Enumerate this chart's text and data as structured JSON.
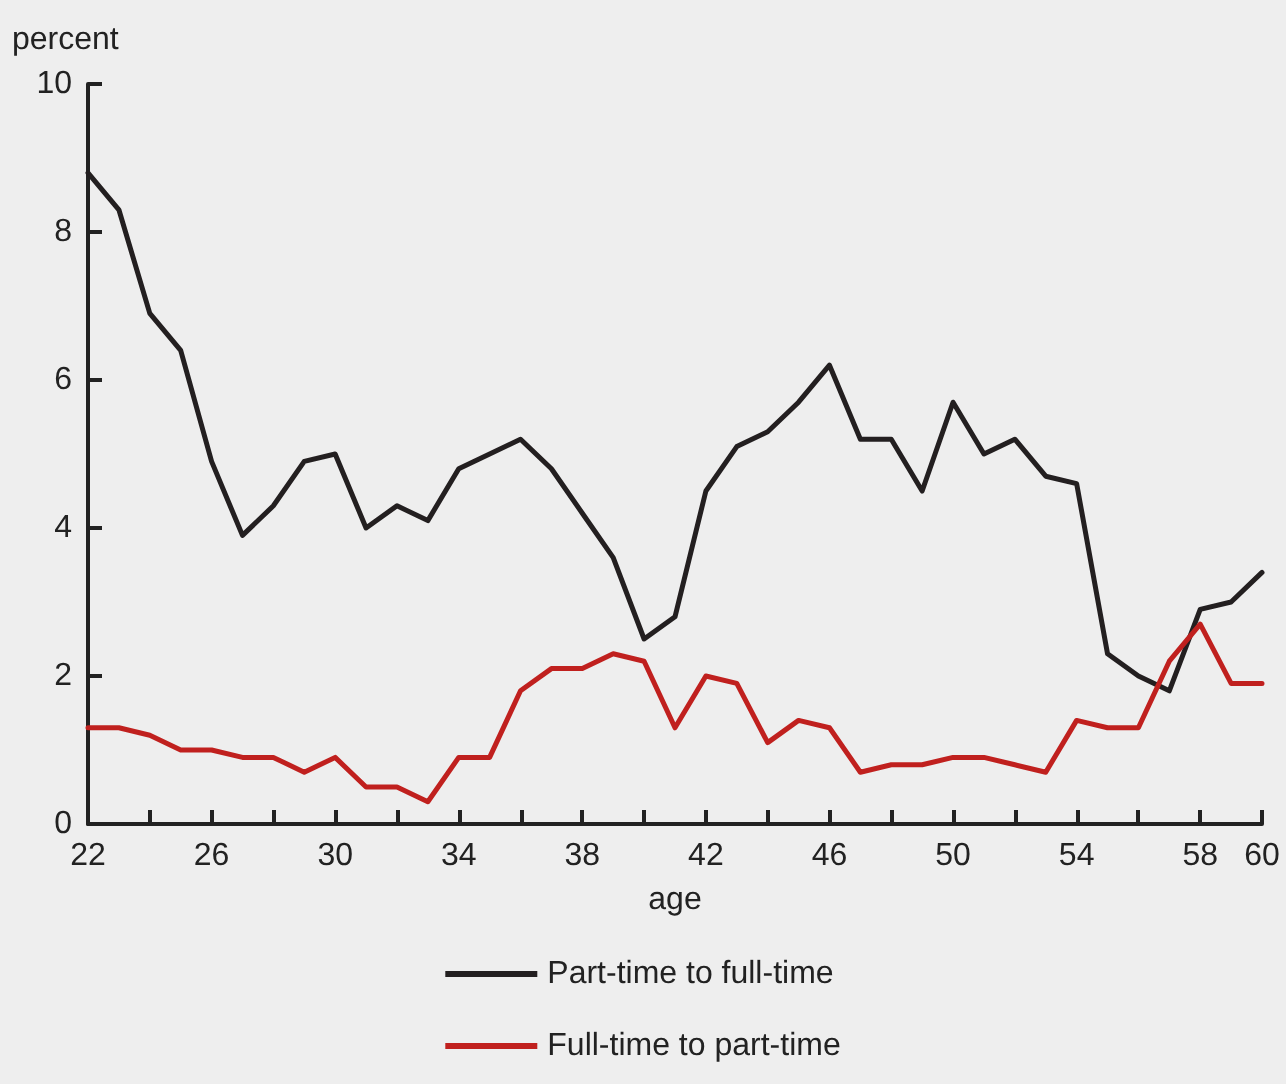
{
  "chart_data": {
    "type": "line",
    "xlabel": "age",
    "ylabel": "percent",
    "x": [
      22,
      23,
      24,
      25,
      26,
      27,
      28,
      29,
      30,
      31,
      32,
      33,
      34,
      35,
      36,
      37,
      38,
      39,
      40,
      41,
      42,
      43,
      44,
      45,
      46,
      47,
      48,
      49,
      50,
      51,
      52,
      53,
      54,
      55,
      56,
      57,
      58,
      59,
      60
    ],
    "series": [
      {
        "name": "Part-time to full-time",
        "color": "#231f20",
        "values": [
          8.8,
          8.3,
          6.9,
          6.4,
          4.9,
          3.9,
          4.3,
          4.9,
          5.0,
          4.0,
          4.3,
          4.1,
          4.8,
          5.0,
          5.2,
          4.8,
          4.2,
          3.6,
          2.5,
          2.8,
          4.5,
          5.1,
          5.3,
          5.7,
          6.2,
          5.2,
          5.2,
          4.5,
          5.7,
          5.0,
          5.2,
          4.7,
          4.6,
          2.3,
          2.0,
          1.8,
          2.9,
          3.0,
          3.4
        ]
      },
      {
        "name": "Full-time to part-time",
        "color": "#c0201e",
        "values": [
          1.3,
          1.3,
          1.2,
          1.0,
          1.0,
          0.9,
          0.9,
          0.7,
          0.9,
          0.5,
          0.5,
          0.3,
          0.9,
          0.9,
          1.8,
          2.1,
          2.1,
          2.3,
          2.2,
          1.3,
          2.0,
          1.9,
          1.1,
          1.4,
          1.3,
          0.7,
          0.8,
          0.8,
          0.9,
          0.9,
          0.8,
          0.7,
          1.4,
          1.3,
          1.3,
          2.2,
          2.7,
          1.9,
          1.9
        ]
      }
    ],
    "xlim": [
      22,
      60
    ],
    "xticks": [
      22,
      {
        "value": 24,
        "label": null
      },
      26,
      {
        "value": 28,
        "label": null
      },
      30,
      {
        "value": 32,
        "label": null
      },
      34,
      {
        "value": 36,
        "label": null
      },
      38,
      {
        "value": 40,
        "label": null
      },
      42,
      {
        "value": 44,
        "label": null
      },
      46,
      {
        "value": 48,
        "label": null
      },
      50,
      {
        "value": 52,
        "label": null
      },
      54,
      {
        "value": 56,
        "label": null
      },
      58,
      60
    ],
    "ylim": [
      0,
      10
    ],
    "yticks": [
      0,
      2,
      4,
      6,
      8,
      10
    ],
    "grid": false,
    "legend": "bottom",
    "marker": "none",
    "line_style": "solid"
  }
}
